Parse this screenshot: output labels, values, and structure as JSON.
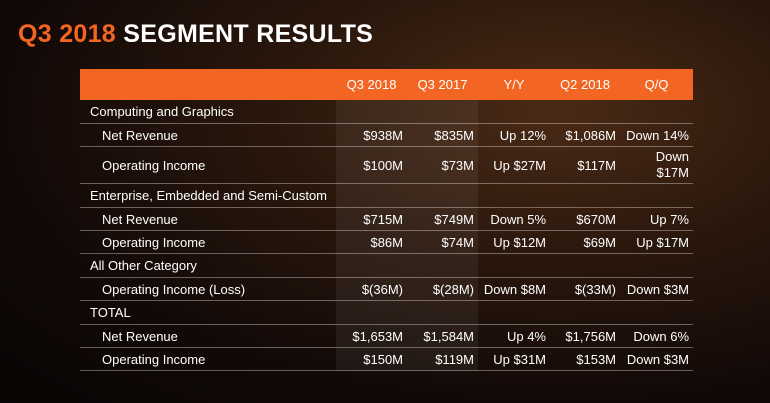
{
  "title": {
    "accent": "Q3 2018",
    "rest": "SEGMENT RESULTS"
  },
  "headers": [
    "",
    "Q3 2018",
    "Q3 2017",
    "Y/Y",
    "Q2 2018",
    "Q/Q"
  ],
  "rows": [
    {
      "type": "section",
      "label": "Computing and Graphics"
    },
    {
      "type": "item",
      "label": "Net Revenue",
      "cells": [
        "$938M",
        "$835M",
        "Up 12%",
        "$1,086M",
        "Down 14%"
      ]
    },
    {
      "type": "item",
      "label": "Operating Income",
      "cells": [
        "$100M",
        "$73M",
        "Up $27M",
        "$117M",
        "Down $17M"
      ],
      "tall": true
    },
    {
      "type": "section",
      "label": "Enterprise, Embedded and Semi-Custom"
    },
    {
      "type": "item",
      "label": "Net Revenue",
      "cells": [
        "$715M",
        "$749M",
        "Down 5%",
        "$670M",
        "Up 7%"
      ]
    },
    {
      "type": "item",
      "label": "Operating Income",
      "cells": [
        "$86M",
        "$74M",
        "Up $12M",
        "$69M",
        "Up $17M"
      ]
    },
    {
      "type": "section",
      "label": "All Other Category"
    },
    {
      "type": "item",
      "label": "Operating Income (Loss)",
      "cells": [
        "$(36M)",
        "$(28M)",
        "Down $8M",
        "$(33M)",
        "Down $3M"
      ]
    },
    {
      "type": "section",
      "label": "TOTAL"
    },
    {
      "type": "item",
      "label": "Net Revenue",
      "cells": [
        "$1,653M",
        "$1,584M",
        "Up 4%",
        "$1,756M",
        "Down 6%"
      ]
    },
    {
      "type": "item",
      "label": "Operating Income",
      "cells": [
        "$150M",
        "$119M",
        "Up $31M",
        "$153M",
        "Down $3M"
      ]
    }
  ],
  "colors": {
    "accent": "#f26522",
    "background": "#1a0e08",
    "text": "#ffffff"
  }
}
